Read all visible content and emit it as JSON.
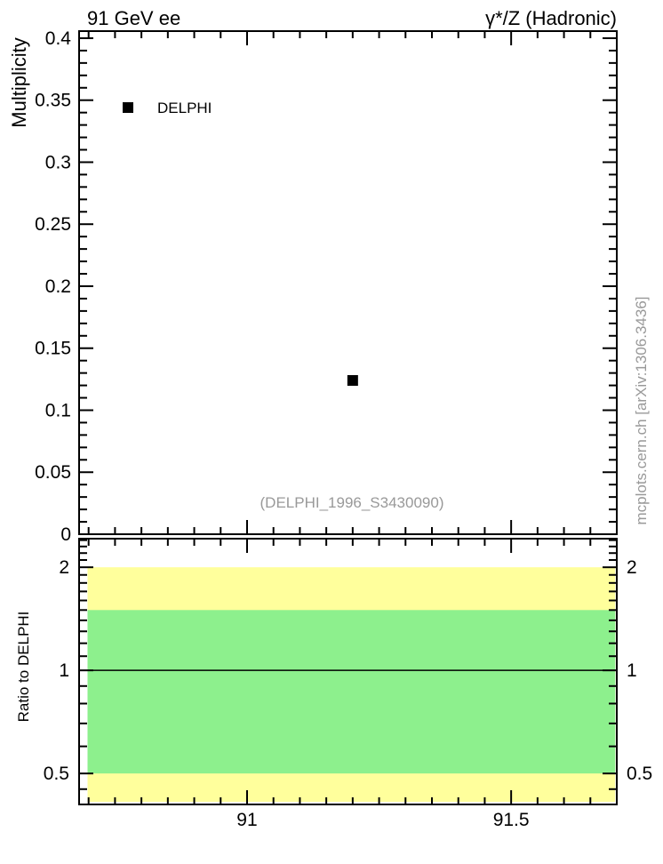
{
  "page": {
    "background": "#ffffff"
  },
  "header": {
    "title_left": "91 GeV ee",
    "title_right": "γ*/Z (Hadronic)"
  },
  "annotations": {
    "watermark": "(DELPHI_1996_S3430090)",
    "side_note": "mcplots.cern.ch [arXiv:1306.3436]"
  },
  "colors": {
    "axis": "#000000",
    "marker": "#000000",
    "band_yellow": "#ffff9c",
    "band_green": "#8df08d",
    "gray_text": "#999999"
  },
  "chart_data": [
    {
      "type": "scatter",
      "panel": "main",
      "title": "91 GeV ee",
      "title_right": "γ*/Z (Hadronic)",
      "xlabel": "",
      "ylabel": "Multiplicity",
      "xscale": "linear",
      "yscale": "linear",
      "grid": false,
      "xlim": [
        90.682,
        91.7
      ],
      "ylim": [
        0,
        0.4057
      ],
      "xticks": [
        {
          "value": 91.0,
          "label": "91"
        },
        {
          "value": 91.5,
          "label": "91.5"
        }
      ],
      "x_minor_step": 0.05,
      "x_tick_labels_visible": false,
      "yticks": [
        {
          "value": 0.0,
          "label": "0"
        },
        {
          "value": 0.05,
          "label": "0.05"
        },
        {
          "value": 0.1,
          "label": "0.1"
        },
        {
          "value": 0.15,
          "label": "0.15"
        },
        {
          "value": 0.2,
          "label": "0.2"
        },
        {
          "value": 0.25,
          "label": "0.25"
        },
        {
          "value": 0.3,
          "label": "0.3"
        },
        {
          "value": 0.35,
          "label": "0.35"
        },
        {
          "value": 0.4,
          "label": "0.4"
        }
      ],
      "y_minor_step": 0.01,
      "legend": {
        "position": "top-left",
        "entries": [
          {
            "label": "DELPHI",
            "marker": "filled-square",
            "color": "#000000"
          }
        ]
      },
      "series": [
        {
          "name": "DELPHI",
          "marker": "filled-square",
          "marker_size": 12,
          "color": "#000000",
          "points": [
            {
              "x": 91.2,
              "y": 0.124
            }
          ]
        }
      ]
    },
    {
      "type": "bands",
      "panel": "ratio",
      "ylabel": "Ratio to DELPHI",
      "xscale": "linear",
      "yscale": "log",
      "grid": false,
      "xlim": [
        90.682,
        91.7
      ],
      "ylim": [
        0.406,
        2.424
      ],
      "xticks": [
        {
          "value": 91.0,
          "label": "91"
        },
        {
          "value": 91.5,
          "label": "91.5"
        }
      ],
      "x_minor_step": 0.05,
      "x_tick_labels_visible": true,
      "yticks": [
        {
          "value": 0.5,
          "label": "0.5"
        },
        {
          "value": 1.0,
          "label": "1"
        },
        {
          "value": 2.0,
          "label": "2"
        }
      ],
      "y_minor_ticks": [
        2.4,
        2.3,
        2.2,
        2.1,
        1.9,
        1.8,
        1.7,
        1.6,
        1.5,
        1.4,
        1.3,
        1.2,
        1.1,
        0.9,
        0.8,
        0.7,
        0.6,
        0.45
      ],
      "y_labels_both_sides": true,
      "bands": [
        {
          "name": "outer-uncertainty-band",
          "color": "#ffff9c",
          "y_min": 0.413,
          "y_max": 2.0,
          "x_min": 90.698,
          "x_max": 91.697
        },
        {
          "name": "inner-uncertainty-band",
          "color": "#8df08d",
          "y_min": 0.5,
          "y_max": 1.5,
          "x_min": 90.698,
          "x_max": 91.697
        }
      ],
      "reference_line": {
        "y": 1.0,
        "color": "#000000"
      }
    }
  ]
}
